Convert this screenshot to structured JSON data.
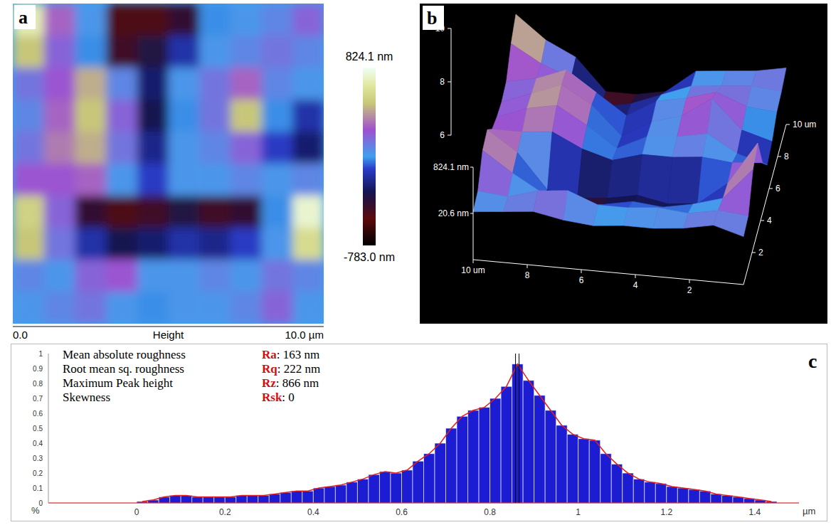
{
  "panel_a": {
    "label": "a",
    "type": "heatmap",
    "xlim": [
      0,
      10
    ],
    "x_ticks": [
      {
        "value": 0,
        "label": "0.0"
      },
      {
        "value": 10,
        "label": "10.0 µm"
      }
    ],
    "x_title": "Height",
    "cells": [
      [
        700,
        300,
        50,
        -500,
        -500,
        -400,
        0,
        50,
        100,
        200
      ],
      [
        500,
        200,
        0,
        -450,
        -350,
        -150,
        50,
        100,
        150,
        100
      ],
      [
        150,
        250,
        450,
        100,
        -250,
        50,
        150,
        300,
        100,
        50
      ],
      [
        100,
        300,
        500,
        200,
        -300,
        0,
        150,
        500,
        0,
        -150
      ],
      [
        150,
        350,
        450,
        150,
        -200,
        50,
        100,
        200,
        -100,
        -250
      ],
      [
        250,
        250,
        300,
        50,
        -100,
        50,
        50,
        100,
        50,
        100
      ],
      [
        550,
        200,
        -400,
        -500,
        -450,
        -350,
        -450,
        -400,
        0,
        750
      ],
      [
        500,
        150,
        -150,
        -300,
        -250,
        -150,
        -200,
        -100,
        50,
        600
      ],
      [
        100,
        50,
        200,
        250,
        50,
        50,
        100,
        50,
        150,
        100
      ],
      [
        50,
        100,
        150,
        50,
        0,
        50,
        50,
        100,
        200,
        50
      ]
    ],
    "colorbar": {
      "range": [
        -783.0,
        824.1
      ],
      "ticks": [
        {
          "value": 824.1,
          "label": "824.1 nm"
        },
        {
          "value": -783.0,
          "label": "-783.0 nm"
        }
      ]
    }
  },
  "panel_b": {
    "label": "b",
    "type": "surface",
    "x_ticks": [
      {
        "value": 10,
        "label": "10 um"
      },
      8,
      6,
      4,
      2
    ],
    "y_ticks": [
      2,
      4,
      6,
      8,
      {
        "value": 10,
        "label": "10 um"
      }
    ],
    "left_ticks": [
      10,
      8,
      6
    ],
    "z_ticks": [
      {
        "value": 824.1,
        "label": "824.1 nm"
      },
      {
        "value": 20.6,
        "label": "20.6 nm"
      }
    ]
  },
  "chart_data": {
    "type": "histogram",
    "label": "c",
    "bins": [
      0,
      0.025,
      0.05,
      0.075,
      0.1,
      0.125,
      0.15,
      0.175,
      0.2,
      0.225,
      0.25,
      0.275,
      0.3,
      0.325,
      0.35,
      0.375,
      0.4,
      0.425,
      0.45,
      0.475,
      0.5,
      0.525,
      0.55,
      0.575,
      0.6,
      0.625,
      0.65,
      0.675,
      0.7,
      0.725,
      0.75,
      0.775,
      0.8,
      0.825,
      0.85,
      0.875,
      0.9,
      0.925,
      0.95,
      0.975,
      1.0,
      1.025,
      1.05,
      1.075,
      1.1,
      1.125,
      1.15,
      1.175,
      1.2,
      1.225,
      1.25,
      1.275,
      1.3,
      1.325,
      1.35,
      1.375,
      1.4,
      1.425,
      1.45
    ],
    "counts": [
      0.01,
      0.02,
      0.04,
      0.05,
      0.05,
      0.04,
      0.04,
      0.04,
      0.04,
      0.05,
      0.05,
      0.05,
      0.06,
      0.07,
      0.08,
      0.08,
      0.1,
      0.11,
      0.12,
      0.14,
      0.16,
      0.19,
      0.21,
      0.2,
      0.22,
      0.28,
      0.33,
      0.4,
      0.5,
      0.58,
      0.62,
      0.64,
      0.7,
      0.78,
      0.93,
      0.82,
      0.72,
      0.62,
      0.52,
      0.46,
      0.43,
      0.42,
      0.33,
      0.26,
      0.2,
      0.16,
      0.14,
      0.13,
      0.11,
      0.1,
      0.09,
      0.08,
      0.06,
      0.05,
      0.04,
      0.03,
      0.02,
      0.01
    ],
    "color": "#1c1cd2",
    "xlim": [
      -0.2,
      1.5
    ],
    "xticks": [
      0,
      0.2,
      0.4,
      0.6,
      0.8,
      1,
      1.2,
      1.4
    ],
    "ylim": [
      0,
      1
    ],
    "yticks": [
      0,
      0.1,
      0.2,
      0.3,
      0.4,
      0.5,
      0.6,
      0.7,
      0.8,
      0.9,
      1
    ],
    "x_label": "µm",
    "y_label": "%",
    "grid": false,
    "markers": [
      0.858,
      0.866
    ],
    "stats_separator": ":",
    "stats": [
      {
        "label": "Mean absolute roughness",
        "symbol": "Ra",
        "value": 163,
        "unit": "nm"
      },
      {
        "label": "Root mean sq. roughness",
        "symbol": "Rq",
        "value": 222,
        "unit": "nm"
      },
      {
        "label": "Maximum  Peak height",
        "symbol": "Rz",
        "value": 866,
        "unit": "nm"
      },
      {
        "label": "Skewness",
        "symbol": "Rsk",
        "value": 0
      }
    ]
  }
}
